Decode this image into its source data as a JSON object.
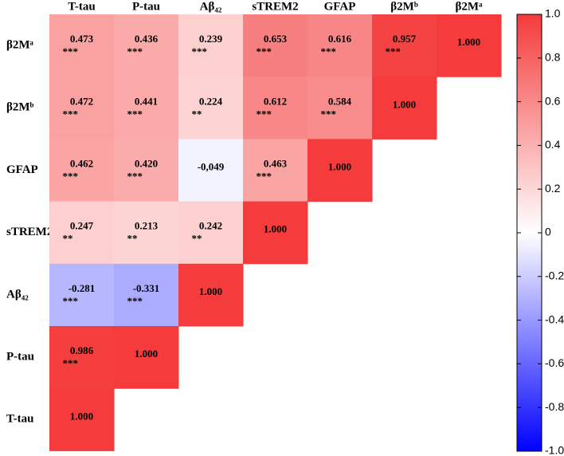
{
  "chart_data": {
    "type": "heatmap",
    "columns": [
      "T-tau",
      "P-tau",
      "Aβ₄₂",
      "sTREM2",
      "GFAP",
      "β2Mᵇ",
      "β2Mᵃ"
    ],
    "rows": [
      "β2Mᵃ",
      "β2Mᵇ",
      "GFAP",
      "sTREM2",
      "Aβ₄₂",
      "P-tau",
      "T-tau"
    ],
    "values": [
      [
        0.473,
        0.436,
        0.239,
        0.653,
        0.616,
        0.957,
        1.0
      ],
      [
        0.472,
        0.441,
        0.224,
        0.612,
        0.584,
        1.0,
        null
      ],
      [
        0.462,
        0.42,
        -0.049,
        0.463,
        1.0,
        null,
        null
      ],
      [
        0.247,
        0.213,
        0.242,
        1.0,
        null,
        null,
        null
      ],
      [
        -0.281,
        -0.331,
        1.0,
        null,
        null,
        null,
        null
      ],
      [
        0.986,
        1.0,
        null,
        null,
        null,
        null,
        null
      ],
      [
        1.0,
        null,
        null,
        null,
        null,
        null,
        null
      ]
    ],
    "value_labels": [
      [
        "0.473",
        "0.436",
        "0.239",
        "0.653",
        "0.616",
        "0.957",
        "1.000"
      ],
      [
        "0.472",
        "0.441",
        "0.224",
        "0.612",
        "0.584",
        "1.000",
        null
      ],
      [
        "0.462",
        "0.420",
        "-0,049",
        "0.463",
        "1.000",
        null,
        null
      ],
      [
        "0.247",
        "0.213",
        "0.242",
        "1.000",
        null,
        null,
        null
      ],
      [
        "-0.281",
        "-0.331",
        "1.000",
        null,
        null,
        null,
        null
      ],
      [
        "0.986",
        "1.000",
        null,
        null,
        null,
        null,
        null
      ],
      [
        "1.000",
        null,
        null,
        null,
        null,
        null,
        null
      ]
    ],
    "significance": [
      [
        "***",
        "***",
        "***",
        "***",
        "***",
        "***",
        null
      ],
      [
        "***",
        "***",
        "**",
        "***",
        "***",
        null,
        null
      ],
      [
        "***",
        "***",
        null,
        "***",
        null,
        null,
        null
      ],
      [
        "**",
        "**",
        "**",
        null,
        null,
        null,
        null
      ],
      [
        "***",
        "***",
        null,
        null,
        null,
        null,
        null
      ],
      [
        "***",
        null,
        null,
        null,
        null,
        null,
        null
      ],
      [
        null,
        null,
        null,
        null,
        null,
        null,
        null
      ]
    ],
    "colormap": [
      "#0000ff",
      "#ffffff",
      "#f53b3b"
    ],
    "zlim": [
      -1.0,
      1.0
    ],
    "zticks": [
      {
        "value": 1.0,
        "label": "1.0"
      },
      0.8,
      0.6,
      0.4,
      0.2,
      0,
      -0.2,
      -0.4,
      -0.6,
      -0.8,
      {
        "value": -1.0,
        "label": "-1.0"
      }
    ]
  }
}
